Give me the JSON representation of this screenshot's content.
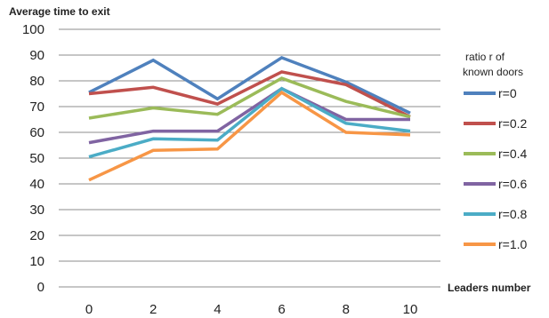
{
  "chart_data": {
    "type": "line",
    "title": "Average time to exit",
    "xlabel": "Leaders number",
    "ylabel": "",
    "x": [
      0,
      2,
      4,
      6,
      8,
      10
    ],
    "xticks": [
      0,
      2,
      4,
      6,
      8,
      10
    ],
    "ylim": [
      0,
      100
    ],
    "yticks": [
      0,
      10,
      20,
      30,
      40,
      50,
      60,
      70,
      80,
      90,
      100
    ],
    "grid": "horizontal",
    "legend": {
      "placement": "right",
      "title_lines": [
        "ratio r of",
        "known doors"
      ]
    },
    "series": [
      {
        "name": "r=0",
        "color": "#4f81bd",
        "values": [
          75.5,
          88,
          73,
          89,
          79.5,
          67.5
        ]
      },
      {
        "name": "r=0.2",
        "color": "#c0504d",
        "values": [
          75,
          77.5,
          71,
          83.5,
          78.5,
          66
        ]
      },
      {
        "name": "r=0.4",
        "color": "#9bbb59",
        "values": [
          65.5,
          69.5,
          67,
          81,
          72,
          66
        ]
      },
      {
        "name": "r=0.6",
        "color": "#8064a2",
        "values": [
          56,
          60.5,
          60.5,
          77,
          65,
          65
        ]
      },
      {
        "name": "r=0.8",
        "color": "#4bacc6",
        "values": [
          50.5,
          57.5,
          57,
          77,
          63.5,
          60.5
        ]
      },
      {
        "name": "r=1.0",
        "color": "#f79646",
        "values": [
          41.5,
          53,
          53.5,
          75.5,
          60,
          59
        ]
      }
    ]
  }
}
